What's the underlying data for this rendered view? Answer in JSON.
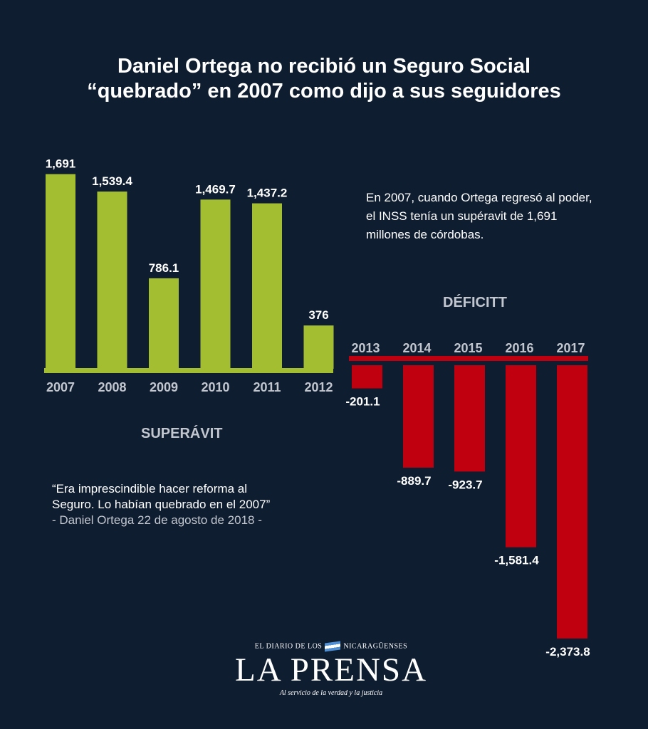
{
  "title_lines": [
    "Daniel Ortega no recibió un Seguro Social",
    "“quebrado” en 2007 como dijo a sus seguidores"
  ],
  "note": "En 2007, cuando Ortega regresó al poder, el INSS tenía un supéravit de 1,691 millones de córdobas.",
  "superavit_label": "SUPERÁVIT",
  "deficit_label": "DÉFICITT",
  "quote": {
    "line1": "“Era imprescindible hacer reforma al",
    "line2": "Seguro. Lo habían quebrado en el 2007”",
    "attribution": "- Daniel Ortega 22 de agosto de 2018 -"
  },
  "logo": {
    "top_left": "EL DIARIO DE LOS",
    "top_right": "NICARAGÜENSES",
    "name": "LA PRENSA",
    "tagline": "Al servicio de la verdad y la justicia"
  },
  "colors": {
    "background": "#0f1d30",
    "surplus": "#a4be32",
    "deficit": "#c0000f",
    "axis_text": "#c2c7cf"
  },
  "chart_data": [
    {
      "type": "bar",
      "name": "SUPERÁVIT",
      "categories": [
        "2007",
        "2008",
        "2009",
        "2010",
        "2011",
        "2012"
      ],
      "values": [
        1691,
        1539.4,
        786.1,
        1469.7,
        1437.2,
        376
      ],
      "value_labels": [
        "1,691",
        "1,539.4",
        "786.1",
        "1,469.7",
        "1,437.2",
        "376"
      ]
    },
    {
      "type": "bar",
      "name": "DÉFICITT",
      "categories": [
        "2013",
        "2014",
        "2015",
        "2016",
        "2017"
      ],
      "values": [
        -201.1,
        -889.7,
        -923.7,
        -1581.4,
        -2373.8
      ],
      "value_labels": [
        "-201.1",
        "-889.7",
        "-923.7",
        "-1,581.4",
        "-2,373.8"
      ]
    }
  ]
}
